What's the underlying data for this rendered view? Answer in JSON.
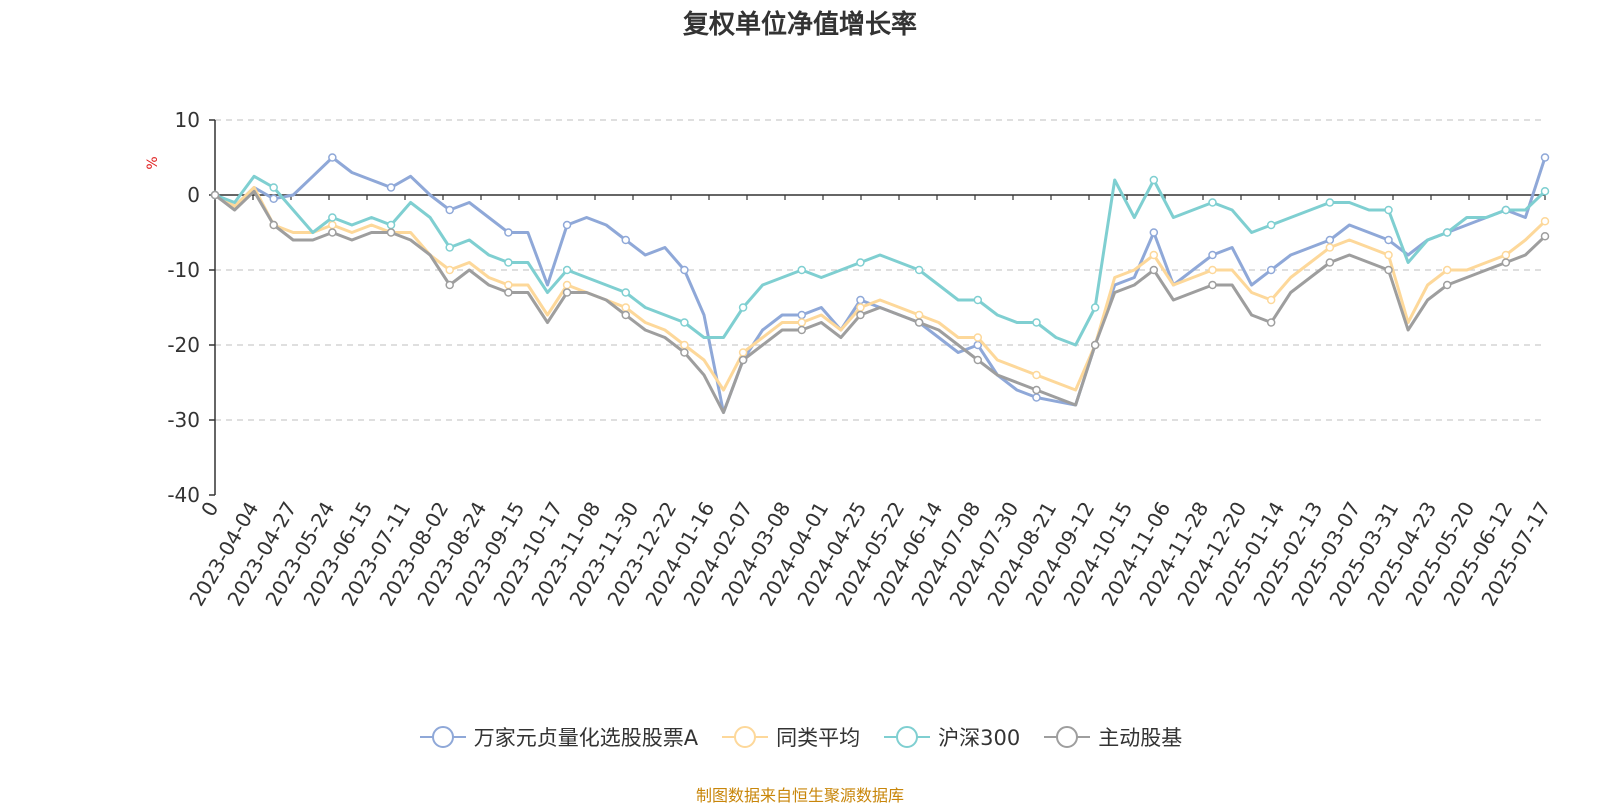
{
  "chart_data": {
    "type": "line",
    "title": "复权单位净值增长率",
    "ylabel": "%",
    "ylim": [
      -40,
      10
    ],
    "yticks": [
      10,
      0,
      -10,
      -20,
      -30,
      -40
    ],
    "grid": true,
    "legend_position": "bottom",
    "x_origin_label": "0",
    "x_tick_labels": [
      "2023-04-04",
      "2023-04-27",
      "2023-05-24",
      "2023-06-15",
      "2023-07-11",
      "2023-08-02",
      "2023-08-24",
      "2023-09-15",
      "2023-10-17",
      "2023-11-08",
      "2023-11-30",
      "2023-12-22",
      "2024-01-16",
      "2024-02-07",
      "2024-03-08",
      "2024-04-01",
      "2024-04-25",
      "2024-05-22",
      "2024-06-14",
      "2024-07-08",
      "2024-07-30",
      "2024-08-21",
      "2024-09-12",
      "2024-10-15",
      "2024-11-06",
      "2024-11-28",
      "2024-12-20",
      "2025-01-14",
      "2025-02-13",
      "2025-03-07",
      "2025-03-31",
      "2025-04-23",
      "2025-05-20",
      "2025-06-12",
      "2025-07-17"
    ],
    "x": [
      "2023-04-04",
      "2023-04-15",
      "2023-04-27",
      "2023-05-10",
      "2023-05-24",
      "2023-06-05",
      "2023-06-15",
      "2023-06-28",
      "2023-07-11",
      "2023-07-21",
      "2023-08-02",
      "2023-08-14",
      "2023-08-24",
      "2023-09-05",
      "2023-09-15",
      "2023-09-28",
      "2023-10-17",
      "2023-10-27",
      "2023-11-08",
      "2023-11-20",
      "2023-11-30",
      "2023-12-12",
      "2023-12-22",
      "2024-01-04",
      "2024-01-16",
      "2024-01-26",
      "2024-02-07",
      "2024-02-22",
      "2024-03-08",
      "2024-03-20",
      "2024-04-01",
      "2024-04-12",
      "2024-04-25",
      "2024-05-09",
      "2024-05-22",
      "2024-06-03",
      "2024-06-14",
      "2024-06-26",
      "2024-07-08",
      "2024-07-18",
      "2024-07-30",
      "2024-08-09",
      "2024-08-21",
      "2024-09-02",
      "2024-09-12",
      "2024-09-30",
      "2024-10-15",
      "2024-10-25",
      "2024-11-06",
      "2024-11-18",
      "2024-11-28",
      "2024-12-10",
      "2024-12-20",
      "2025-01-03",
      "2025-01-14",
      "2025-01-27",
      "2025-02-13",
      "2025-02-24",
      "2025-03-07",
      "2025-03-19",
      "2025-03-31",
      "2025-04-10",
      "2025-04-23",
      "2025-05-08",
      "2025-05-20",
      "2025-05-30",
      "2025-06-12",
      "2025-06-25",
      "2025-07-17"
    ],
    "series": [
      {
        "name": "万家元贞量化选股股票A",
        "color": "#8fa8d8",
        "values": [
          0,
          -1.5,
          1,
          -0.5,
          0,
          2.5,
          5,
          3,
          2,
          1,
          2.5,
          0,
          -2,
          -1,
          -3,
          -5,
          -5,
          -12,
          -4,
          -3,
          -4,
          -6,
          -8,
          -7,
          -10,
          -16,
          -29,
          -22,
          -18,
          -16,
          -16,
          -15,
          -18,
          -14,
          -15,
          -16,
          -17,
          -19,
          -21,
          -20,
          -24,
          -26,
          -27,
          -27.5,
          -28,
          -20,
          -12,
          -11,
          -5,
          -12,
          -10,
          -8,
          -7,
          -12,
          -10,
          -8,
          -7,
          -6,
          -4,
          -5,
          -6,
          -8,
          -6,
          -5,
          -4,
          -3,
          -2,
          -3,
          5
        ]
      },
      {
        "name": "同类平均",
        "color": "#fdd89a",
        "values": [
          0,
          -1.5,
          1,
          -4,
          -5,
          -5,
          -4,
          -5,
          -4,
          -5,
          -5,
          -8,
          -10,
          -9,
          -11,
          -12,
          -12,
          -16,
          -12,
          -13,
          -14,
          -15,
          -17,
          -18,
          -20,
          -22,
          -26,
          -21,
          -19,
          -17,
          -17,
          -16,
          -18,
          -15,
          -14,
          -15,
          -16,
          -17,
          -19,
          -19,
          -22,
          -23,
          -24,
          -25,
          -26,
          -20,
          -11,
          -10,
          -8,
          -12,
          -11,
          -10,
          -10,
          -13,
          -14,
          -11,
          -9,
          -7,
          -6,
          -7,
          -8,
          -17,
          -12,
          -10,
          -10,
          -9,
          -8,
          -6,
          -3.5
        ]
      },
      {
        "name": "沪深300",
        "color": "#7fcfd1",
        "values": [
          0,
          -1,
          2.5,
          1,
          -2,
          -5,
          -3,
          -4,
          -3,
          -4,
          -1,
          -3,
          -7,
          -6,
          -8,
          -9,
          -9,
          -13,
          -10,
          -11,
          -12,
          -13,
          -15,
          -16,
          -17,
          -19,
          -19,
          -15,
          -12,
          -11,
          -10,
          -11,
          -10,
          -9,
          -8,
          -9,
          -10,
          -12,
          -14,
          -14,
          -16,
          -17,
          -17,
          -19,
          -20,
          -15,
          2,
          -3,
          2,
          -3,
          -2,
          -1,
          -2,
          -5,
          -4,
          -3,
          -2,
          -1,
          -1,
          -2,
          -2,
          -9,
          -6,
          -5,
          -3,
          -3,
          -2,
          -2,
          0.5
        ]
      },
      {
        "name": "主动股基",
        "color": "#9e9e9e",
        "values": [
          0,
          -2,
          0.5,
          -4,
          -6,
          -6,
          -5,
          -6,
          -5,
          -5,
          -6,
          -8,
          -12,
          -10,
          -12,
          -13,
          -13,
          -17,
          -13,
          -13,
          -14,
          -16,
          -18,
          -19,
          -21,
          -24,
          -29,
          -22,
          -20,
          -18,
          -18,
          -17,
          -19,
          -16,
          -15,
          -16,
          -17,
          -18,
          -20,
          -22,
          -24,
          -25,
          -26,
          -27,
          -28,
          -20,
          -13,
          -12,
          -10,
          -14,
          -13,
          -12,
          -12,
          -16,
          -17,
          -13,
          -11,
          -9,
          -8,
          -9,
          -10,
          -18,
          -14,
          -12,
          -11,
          -10,
          -9,
          -8,
          -5.5
        ]
      }
    ]
  },
  "footer": {
    "source": "制图数据来自恒生聚源数据库"
  }
}
